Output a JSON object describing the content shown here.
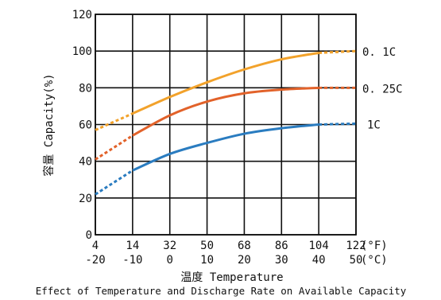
{
  "chart_data": {
    "type": "line",
    "ylabel": "容量 Capacity(%)",
    "xlabel": "温度 Temperature",
    "caption": "Effect of Temperature and Discharge Rate on Available Capacity",
    "ylim": [
      0,
      120
    ],
    "y_ticks": [
      "0",
      "20",
      "40",
      "60",
      "80",
      "100",
      "120"
    ],
    "x_ticks_f": [
      "4",
      "14",
      "32",
      "50",
      "68",
      "86",
      "104",
      "122"
    ],
    "x_ticks_c": [
      "-20",
      "-10",
      "0",
      "10",
      "20",
      "30",
      "40",
      "50"
    ],
    "x_unit_f": "(°F)",
    "x_unit_c": "(°C)",
    "xlim_c": [
      -20,
      50
    ],
    "grid": true,
    "series": [
      {
        "name": "0.1C",
        "color": "#f2a22b",
        "dashed_before_c": -10,
        "dashed_after_c": 40,
        "points": [
          [
            -20,
            57
          ],
          [
            -10,
            66
          ],
          [
            0,
            75
          ],
          [
            10,
            83
          ],
          [
            20,
            90
          ],
          [
            30,
            95.5
          ],
          [
            40,
            99
          ],
          [
            50,
            100
          ]
        ]
      },
      {
        "name": "0.25C",
        "color": "#e2622a",
        "dashed_before_c": -10,
        "dashed_after_c": 40,
        "points": [
          [
            -20,
            41
          ],
          [
            -10,
            54
          ],
          [
            0,
            65
          ],
          [
            10,
            72.5
          ],
          [
            20,
            77
          ],
          [
            30,
            79
          ],
          [
            40,
            80
          ],
          [
            50,
            80
          ]
        ]
      },
      {
        "name": "1C",
        "color": "#2a7cc0",
        "dashed_before_c": -10,
        "dashed_after_c": 40,
        "points": [
          [
            -20,
            22
          ],
          [
            -10,
            35
          ],
          [
            0,
            44
          ],
          [
            10,
            50
          ],
          [
            20,
            55
          ],
          [
            30,
            58
          ],
          [
            40,
            60
          ],
          [
            50,
            60.5
          ]
        ]
      }
    ]
  }
}
